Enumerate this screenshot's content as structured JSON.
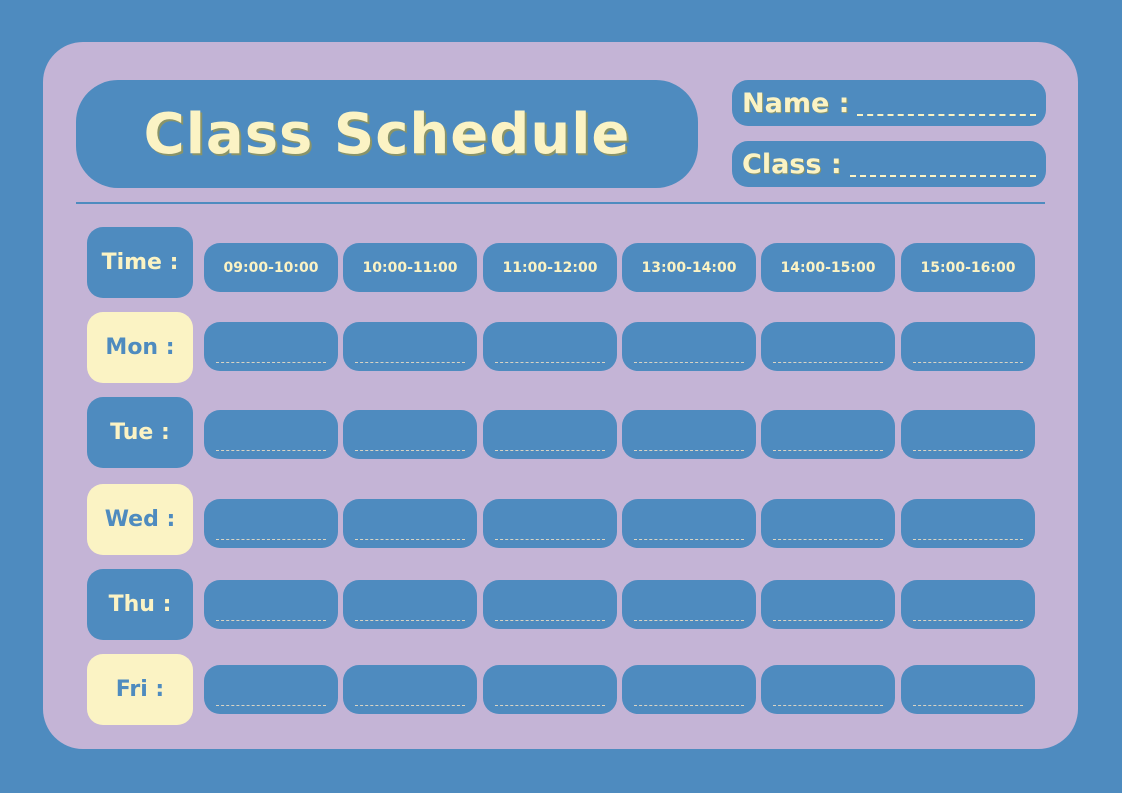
{
  "title": "Class Schedule",
  "fields": {
    "name_label": "Name :",
    "class_label": "Class :"
  },
  "time_label": "Time :",
  "time_slots": [
    "09:00-10:00",
    "10:00-11:00",
    "11:00-12:00",
    "13:00-14:00",
    "14:00-15:00",
    "15:00-16:00"
  ],
  "days": [
    "Mon :",
    "Tue :",
    "Wed :",
    "Thu :",
    "Fri :"
  ],
  "colors": {
    "background": "#4e8bbf",
    "card": "#c4b4d6",
    "accent": "#fbf3c4"
  }
}
